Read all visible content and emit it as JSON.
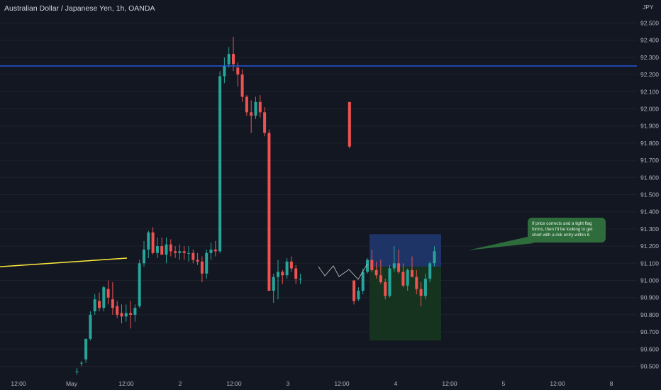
{
  "header": {
    "title": "Australian Dollar / Japanese Yen, 1h, OANDA"
  },
  "chart_data": {
    "type": "candlestick",
    "currency_label": "JPY",
    "ylim": [
      90.46,
      92.57
    ],
    "y_ticks": [
      92.5,
      92.4,
      92.3,
      92.2,
      92.1,
      92.0,
      91.9,
      91.8,
      91.7,
      91.6,
      91.5,
      91.4,
      91.3,
      91.2,
      91.1,
      91.0,
      90.9,
      90.8,
      90.7,
      90.6,
      90.5
    ],
    "y_tick_labels": [
      "92.500",
      "92.400",
      "92.300",
      "92.200",
      "92.100",
      "92.000",
      "91.900",
      "91.800",
      "91.700",
      "91.600",
      "91.500",
      "91.400",
      "91.300",
      "91.200",
      "91.100",
      "91.000",
      "90.900",
      "90.800",
      "90.700",
      "90.600",
      "90.500"
    ],
    "x_tick_labels": [
      "12:00",
      "May",
      "12:00",
      "2",
      "12:00",
      "3",
      "12:00",
      "4",
      "12:00",
      "5",
      "12:00",
      "8"
    ],
    "colors": {
      "up": "#26a69a",
      "down": "#ef5350",
      "resistance": "#2962ff",
      "trendline": "#ffeb3b",
      "risk": "#1e3366",
      "reward": "#15331f",
      "callout": "#2e6d3b",
      "grid": "#1e222d",
      "text": "#b2b5be"
    },
    "resistance_level": 92.25,
    "trendline": {
      "start": 91.08,
      "end": 91.13
    },
    "position_box": {
      "top": 91.27,
      "entry": 91.08,
      "bottom": 90.65
    },
    "callout_text": "If price corrects and a tight flag forms, then I'll be looking to get short with a risk entry within it.",
    "candles": [
      [
        90.47,
        90.49,
        90.45,
        90.47
      ],
      [
        90.52,
        90.53,
        90.5,
        90.52
      ],
      [
        90.54,
        90.66,
        90.52,
        90.66
      ],
      [
        90.66,
        90.82,
        90.65,
        90.8
      ],
      [
        90.82,
        90.92,
        90.8,
        90.89
      ],
      [
        90.88,
        90.93,
        90.82,
        90.84
      ],
      [
        90.84,
        90.97,
        90.82,
        90.96
      ],
      [
        90.95,
        91.0,
        90.86,
        90.9
      ],
      [
        90.89,
        90.99,
        90.8,
        90.84
      ],
      [
        90.85,
        90.88,
        90.78,
        90.8
      ],
      [
        90.81,
        90.86,
        90.75,
        90.79
      ],
      [
        90.79,
        90.86,
        90.76,
        90.81
      ],
      [
        90.81,
        90.88,
        90.72,
        90.8
      ],
      [
        90.8,
        90.86,
        90.76,
        90.84
      ],
      [
        90.85,
        91.12,
        90.84,
        91.1
      ],
      [
        91.1,
        91.23,
        91.08,
        91.18
      ],
      [
        91.18,
        91.29,
        91.13,
        91.28
      ],
      [
        91.28,
        91.31,
        91.15,
        91.16
      ],
      [
        91.16,
        91.25,
        91.13,
        91.2
      ],
      [
        91.2,
        91.25,
        91.15,
        91.15
      ],
      [
        91.15,
        91.25,
        91.1,
        91.21
      ],
      [
        91.21,
        91.24,
        91.14,
        91.17
      ],
      [
        91.17,
        91.2,
        91.13,
        91.16
      ],
      [
        91.16,
        91.21,
        91.12,
        91.17
      ],
      [
        91.17,
        91.2,
        91.12,
        91.16
      ],
      [
        91.16,
        91.2,
        91.11,
        91.16
      ],
      [
        91.16,
        91.18,
        91.1,
        91.12
      ],
      [
        91.12,
        91.16,
        91.09,
        91.11
      ],
      [
        91.11,
        91.14,
        90.99,
        91.04
      ],
      [
        91.04,
        91.18,
        91.01,
        91.16
      ],
      [
        91.16,
        91.22,
        91.12,
        91.18
      ],
      [
        91.18,
        91.23,
        91.14,
        91.17
      ],
      [
        91.17,
        92.22,
        91.16,
        92.19
      ],
      [
        92.19,
        92.3,
        92.15,
        92.25
      ],
      [
        92.26,
        92.36,
        92.24,
        92.32
      ],
      [
        92.32,
        92.42,
        92.22,
        92.26
      ],
      [
        92.24,
        92.27,
        92.13,
        92.2
      ],
      [
        92.2,
        92.23,
        92.04,
        92.07
      ],
      [
        92.07,
        92.08,
        91.96,
        91.98
      ],
      [
        91.98,
        92.05,
        91.86,
        91.96
      ],
      [
        91.96,
        92.07,
        91.94,
        92.04
      ],
      [
        92.04,
        92.08,
        91.95,
        91.98
      ],
      [
        91.98,
        92.01,
        91.84,
        91.86
      ],
      [
        91.86,
        91.88,
        90.94,
        90.94
      ],
      [
        90.94,
        91.04,
        90.87,
        91.02
      ],
      [
        91.02,
        91.12,
        90.89,
        91.05
      ],
      [
        91.05,
        91.06,
        90.98,
        91.03
      ],
      [
        91.03,
        91.13,
        91.01,
        91.11
      ],
      [
        91.11,
        91.14,
        91.05,
        91.07
      ],
      [
        91.07,
        91.09,
        90.98,
        91.01
      ],
      [
        91.01,
        91.04,
        90.98,
        91.01
      ],
      null,
      null,
      null,
      null,
      null,
      null,
      null,
      null,
      null,
      null,
      [
        92.04,
        92.04,
        91.77,
        91.78
      ],
      [
        91.0,
        91.0,
        90.86,
        90.88
      ],
      [
        90.89,
        90.96,
        90.88,
        90.94
      ],
      [
        90.94,
        91.07,
        90.92,
        91.05
      ],
      [
        91.05,
        91.13,
        91.04,
        91.12
      ],
      [
        91.12,
        91.18,
        91.05,
        91.06
      ],
      [
        91.06,
        91.11,
        91.01,
        91.03
      ],
      [
        91.03,
        91.12,
        90.98,
        90.99
      ],
      [
        90.99,
        91.01,
        90.89,
        90.91
      ],
      [
        90.91,
        91.09,
        90.9,
        91.07
      ],
      [
        91.07,
        91.2,
        91.05,
        91.1
      ],
      [
        91.1,
        91.18,
        91.04,
        91.05
      ],
      [
        91.05,
        91.1,
        90.96,
        90.97
      ],
      [
        90.97,
        91.07,
        90.94,
        91.06
      ],
      [
        91.06,
        91.14,
        91.02,
        91.02
      ],
      [
        91.02,
        91.06,
        90.92,
        90.95
      ],
      [
        90.95,
        90.99,
        90.85,
        90.91
      ],
      [
        90.91,
        91.04,
        90.89,
        91.01
      ],
      [
        91.01,
        91.11,
        90.99,
        91.1
      ],
      [
        91.1,
        91.2,
        91.08,
        91.17
      ]
    ]
  }
}
